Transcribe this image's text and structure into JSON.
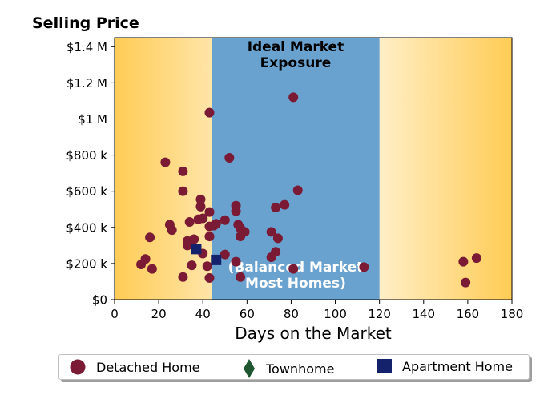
{
  "chart_data": {
    "type": "scatter",
    "title": "Selling Price",
    "xlabel": "Days on the Market",
    "xlim": [
      0,
      180
    ],
    "ylim": [
      0,
      1450000
    ],
    "x_ticks": [
      0,
      20,
      40,
      60,
      80,
      100,
      120,
      140,
      160,
      180
    ],
    "x_tick_labels": [
      "0",
      "20",
      "40",
      "60",
      "80",
      "100",
      "120",
      "140",
      "160",
      "180"
    ],
    "y_ticks": [
      0,
      200000,
      400000,
      600000,
      800000,
      1000000,
      1200000,
      1400000
    ],
    "y_tick_labels": [
      "$0",
      "$200 k",
      "$400 k",
      "$600 k",
      "$800 k",
      "$1 M",
      "$1.2 M",
      "$1.4 M"
    ],
    "grid": false,
    "legend_position": "bottom-center",
    "bands": [
      {
        "label_lines": [
          "Ideal Market",
          "Exposure"
        ],
        "from": 44,
        "to": 120,
        "color": "#6aa2cf",
        "label_color": "#000000",
        "label_position": "top"
      },
      {
        "label_lines": [
          "(Balanced Market",
          "Most Homes)"
        ],
        "from": 44,
        "to": 120,
        "color": "#6aa2cf",
        "label_color": "#ffffff",
        "label_position": "bottom"
      }
    ],
    "background_gradient": {
      "edge_color": "#ffcc55",
      "center_color": "#ffffff"
    },
    "series": [
      {
        "name": "Detached Home",
        "marker": "circle",
        "color": "#7a1a35",
        "points": [
          [
            12,
            195000
          ],
          [
            14,
            225000
          ],
          [
            16,
            345000
          ],
          [
            17,
            170000
          ],
          [
            23,
            760000
          ],
          [
            25,
            415000
          ],
          [
            26,
            385000
          ],
          [
            31,
            710000
          ],
          [
            31,
            600000
          ],
          [
            31,
            125000
          ],
          [
            33,
            300000
          ],
          [
            33,
            325000
          ],
          [
            34,
            430000
          ],
          [
            35,
            190000
          ],
          [
            36,
            335000
          ],
          [
            38,
            445000
          ],
          [
            39,
            555000
          ],
          [
            39,
            515000
          ],
          [
            40,
            450000
          ],
          [
            40,
            255000
          ],
          [
            42,
            185000
          ],
          [
            43,
            1035000
          ],
          [
            43,
            485000
          ],
          [
            43,
            405000
          ],
          [
            43,
            350000
          ],
          [
            43,
            120000
          ],
          [
            45,
            410000
          ],
          [
            46,
            420000
          ],
          [
            50,
            440000
          ],
          [
            50,
            250000
          ],
          [
            52,
            785000
          ],
          [
            55,
            520000
          ],
          [
            55,
            490000
          ],
          [
            55,
            210000
          ],
          [
            56,
            415000
          ],
          [
            57,
            395000
          ],
          [
            57,
            350000
          ],
          [
            57,
            125000
          ],
          [
            59,
            375000
          ],
          [
            71,
            375000
          ],
          [
            71,
            235000
          ],
          [
            73,
            510000
          ],
          [
            73,
            265000
          ],
          [
            74,
            340000
          ],
          [
            77,
            525000
          ],
          [
            81,
            1120000
          ],
          [
            81,
            170000
          ],
          [
            83,
            605000
          ],
          [
            113,
            180000
          ],
          [
            158,
            210000
          ],
          [
            159,
            95000
          ],
          [
            164,
            230000
          ]
        ]
      },
      {
        "name": "Townhome",
        "marker": "diamond",
        "color": "#1e5631",
        "points": []
      },
      {
        "name": "Apartment Home",
        "marker": "square",
        "color": "#14226b",
        "points": [
          [
            37,
            280000
          ],
          [
            46,
            220000
          ]
        ]
      }
    ]
  }
}
